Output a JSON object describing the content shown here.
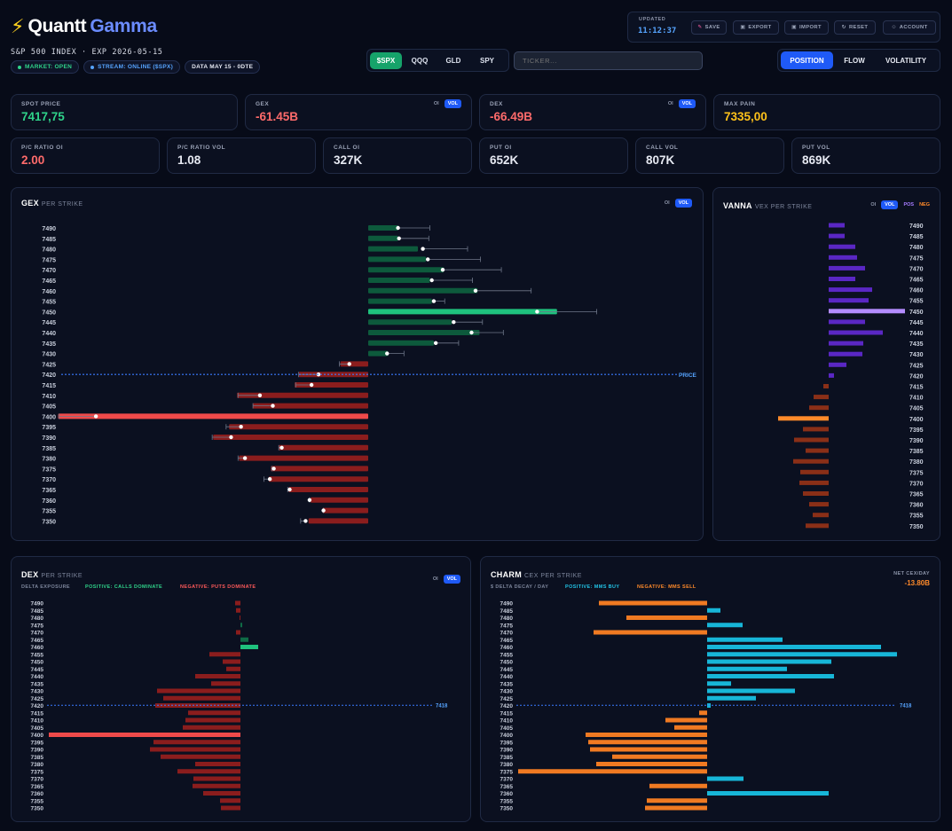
{
  "brand": {
    "bolt": "⚡",
    "name1": "Quantt",
    "name2": "Gamma"
  },
  "subtitle": "S&P 500 INDEX · EXP 2026-05-15",
  "pills": [
    {
      "label": "MARKET: OPEN",
      "color": "#2fd38a",
      "dot": true
    },
    {
      "label": "STREAM: ONLINE ($SPX)",
      "color": "#56a4ff",
      "dot": true
    },
    {
      "label": "DATA MAY 15 - 0DTE",
      "color": "#e6e9f2",
      "dot": false
    }
  ],
  "tickers": [
    "$SPX",
    "QQQ",
    "GLD",
    "SPY"
  ],
  "ticker_placeholder": "TICKER...",
  "views": [
    "POSITION",
    "FLOW",
    "VOLATILITY"
  ],
  "toolbar": {
    "updated_label": "UPDATED",
    "updated_time": "11:12:37",
    "buttons": [
      "SAVE",
      "EXPORT",
      "IMPORT",
      "RESET",
      "ACCOUNT"
    ]
  },
  "stats": {
    "spot": {
      "label": "SPOT PRICE",
      "value": "7417,75",
      "color": "#2fd38a"
    },
    "gex": {
      "label": "GEX",
      "value": "-61.45B",
      "color": "#ff6b6b"
    },
    "dex": {
      "label": "DEX",
      "value": "-66.49B",
      "color": "#ff6b6b"
    },
    "maxpain": {
      "label": "MAX PAIN",
      "value": "7335,00",
      "color": "#ffc21a"
    },
    "pc_oi": {
      "label": "P/C RATIO OI",
      "value": "2.00",
      "color": "#ff6b6b"
    },
    "pc_vol": {
      "label": "P/C RATIO VOL",
      "value": "1.08",
      "color": "#e6e9f2"
    },
    "call_oi": {
      "label": "CALL OI",
      "value": "327K",
      "color": "#e6e9f2"
    },
    "put_oi": {
      "label": "PUT OI",
      "value": "652K",
      "color": "#e6e9f2"
    },
    "call_vol": {
      "label": "CALL VOL",
      "value": "807K",
      "color": "#e6e9f2"
    },
    "put_vol": {
      "label": "PUT VOL",
      "value": "869K",
      "color": "#e6e9f2"
    }
  },
  "toggles": {
    "oi": "OI",
    "vol": "VOL",
    "pos": "POS",
    "neg": "NEG"
  },
  "strikes": [
    7490,
    7485,
    7480,
    7475,
    7470,
    7465,
    7460,
    7455,
    7450,
    7445,
    7440,
    7435,
    7430,
    7425,
    7420,
    7415,
    7410,
    7405,
    7400,
    7395,
    7390,
    7385,
    7380,
    7375,
    7370,
    7365,
    7360,
    7355,
    7350
  ],
  "panels": {
    "gex": {
      "title": "GEX",
      "subtitle": "PER STRIKE",
      "price_label": "PRICE"
    },
    "vanna": {
      "title": "VANNA",
      "subtitle": "VEX PER STRIKE"
    },
    "dex": {
      "title": "DEX",
      "subtitle": "PER STRIKE",
      "legend": [
        "DELTA EXPOSURE",
        "POSITIVE: CALLS DOMINATE",
        "NEGATIVE: PUTS DOMINATE"
      ],
      "price_label": "7418"
    },
    "charm": {
      "title": "CHARM",
      "subtitle": "CEX PER STRIKE",
      "legend": [
        "$ DELTA DECAY / DAY",
        "POSITIVE: MMS BUY",
        "NEGATIVE: MMS SELL"
      ],
      "net_label": "NET CEX/DAY",
      "net_value": "-13.80B",
      "price_label": "7418"
    }
  },
  "chart_data": [
    {
      "name": "GEX per strike",
      "type": "bar",
      "categories": [
        7490,
        7485,
        7480,
        7475,
        7470,
        7465,
        7460,
        7455,
        7450,
        7445,
        7440,
        7435,
        7430,
        7425,
        7420,
        7415,
        7410,
        7405,
        7400,
        7395,
        7390,
        7385,
        7380,
        7375,
        7370,
        7365,
        7360,
        7355,
        7350
      ],
      "values": [
        30,
        30,
        50,
        58,
        76,
        62,
        110,
        64,
        190,
        84,
        112,
        66,
        20,
        -28,
        -70,
        -74,
        -132,
        -116,
        -312,
        -140,
        -156,
        -90,
        -130,
        -98,
        -100,
        -80,
        -58,
        -46,
        -60
      ],
      "markers": [
        30,
        31,
        55,
        60,
        75,
        64,
        108,
        66,
        170,
        86,
        104,
        68,
        19,
        -19,
        -50,
        -57,
        -109,
        -96,
        -274,
        -128,
        -138,
        -87,
        -124,
        -95,
        -99,
        -79,
        -59,
        -45,
        -63
      ],
      "whisker_max": [
        62,
        61,
        100,
        113,
        134,
        105,
        164,
        77,
        230,
        115,
        136,
        91,
        36,
        -29,
        -70,
        -73,
        -131,
        -116,
        -311,
        -143,
        -157,
        -90,
        -131,
        -97,
        -105,
        -81,
        -59,
        -45,
        -68
      ]
    },
    {
      "name": "VANNA per strike",
      "type": "bar",
      "categories": [
        7490,
        7485,
        7480,
        7475,
        7470,
        7465,
        7460,
        7455,
        7450,
        7445,
        7440,
        7435,
        7430,
        7425,
        7420,
        7415,
        7410,
        7405,
        7400,
        7395,
        7390,
        7385,
        7380,
        7375,
        7370,
        7365,
        7360,
        7355,
        7350
      ],
      "values": [
        18,
        18,
        30,
        32,
        41,
        30,
        49,
        45,
        86,
        41,
        61,
        39,
        38,
        20,
        6,
        -6,
        -17,
        -22,
        -57,
        -29,
        -39,
        -26,
        -40,
        -32,
        -33,
        -29,
        -22,
        -18,
        -26
      ]
    },
    {
      "name": "DEX per strike",
      "type": "bar",
      "categories": [
        7490,
        7485,
        7480,
        7475,
        7470,
        7465,
        7460,
        7455,
        7450,
        7445,
        7440,
        7435,
        7430,
        7425,
        7420,
        7415,
        7410,
        7405,
        7400,
        7395,
        7390,
        7385,
        7380,
        7375,
        7370,
        7365,
        7360,
        7355,
        7350
      ],
      "values": [
        -6,
        -5,
        -1,
        2,
        -5,
        9,
        20,
        -35,
        -20,
        -16,
        -51,
        -33,
        -94,
        -87,
        -96,
        -59,
        -62,
        -65,
        -216,
        -98,
        -102,
        -90,
        -51,
        -71,
        -53,
        -54,
        -42,
        -23,
        -22
      ]
    },
    {
      "name": "CHARM per strike",
      "type": "bar",
      "categories": [
        7490,
        7485,
        7480,
        7475,
        7470,
        7465,
        7460,
        7455,
        7450,
        7445,
        7440,
        7435,
        7430,
        7425,
        7420,
        7415,
        7410,
        7405,
        7400,
        7395,
        7390,
        7385,
        7380,
        7375,
        7370,
        7365,
        7360,
        7355,
        7350
      ],
      "values": [
        -122,
        15,
        -91,
        40,
        -128,
        85,
        196,
        214,
        140,
        90,
        143,
        27,
        99,
        55,
        4,
        -9,
        -47,
        -37,
        -137,
        -134,
        -132,
        -107,
        -125,
        -213,
        41,
        -65,
        137,
        -68,
        -70
      ]
    }
  ]
}
